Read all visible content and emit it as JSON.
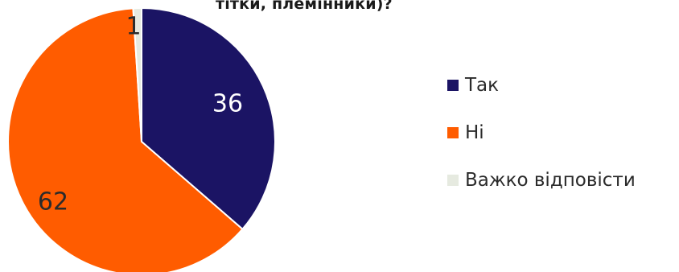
{
  "chart_data": {
    "type": "pie",
    "title": "тітки, племінники)?",
    "slices": [
      {
        "label": "Так",
        "value": 36,
        "color": "#1b1464",
        "label_color": "#ffffff"
      },
      {
        "label": "Ні",
        "value": 62,
        "color": "#ff5c00",
        "label_color": "#2b2b2b"
      },
      {
        "label": "Важко відповісти",
        "value": 1,
        "color": "#e6eae0",
        "label_color": "#2b2b2b"
      }
    ],
    "start": "top",
    "direction": "clockwise",
    "legend_position": "right"
  }
}
